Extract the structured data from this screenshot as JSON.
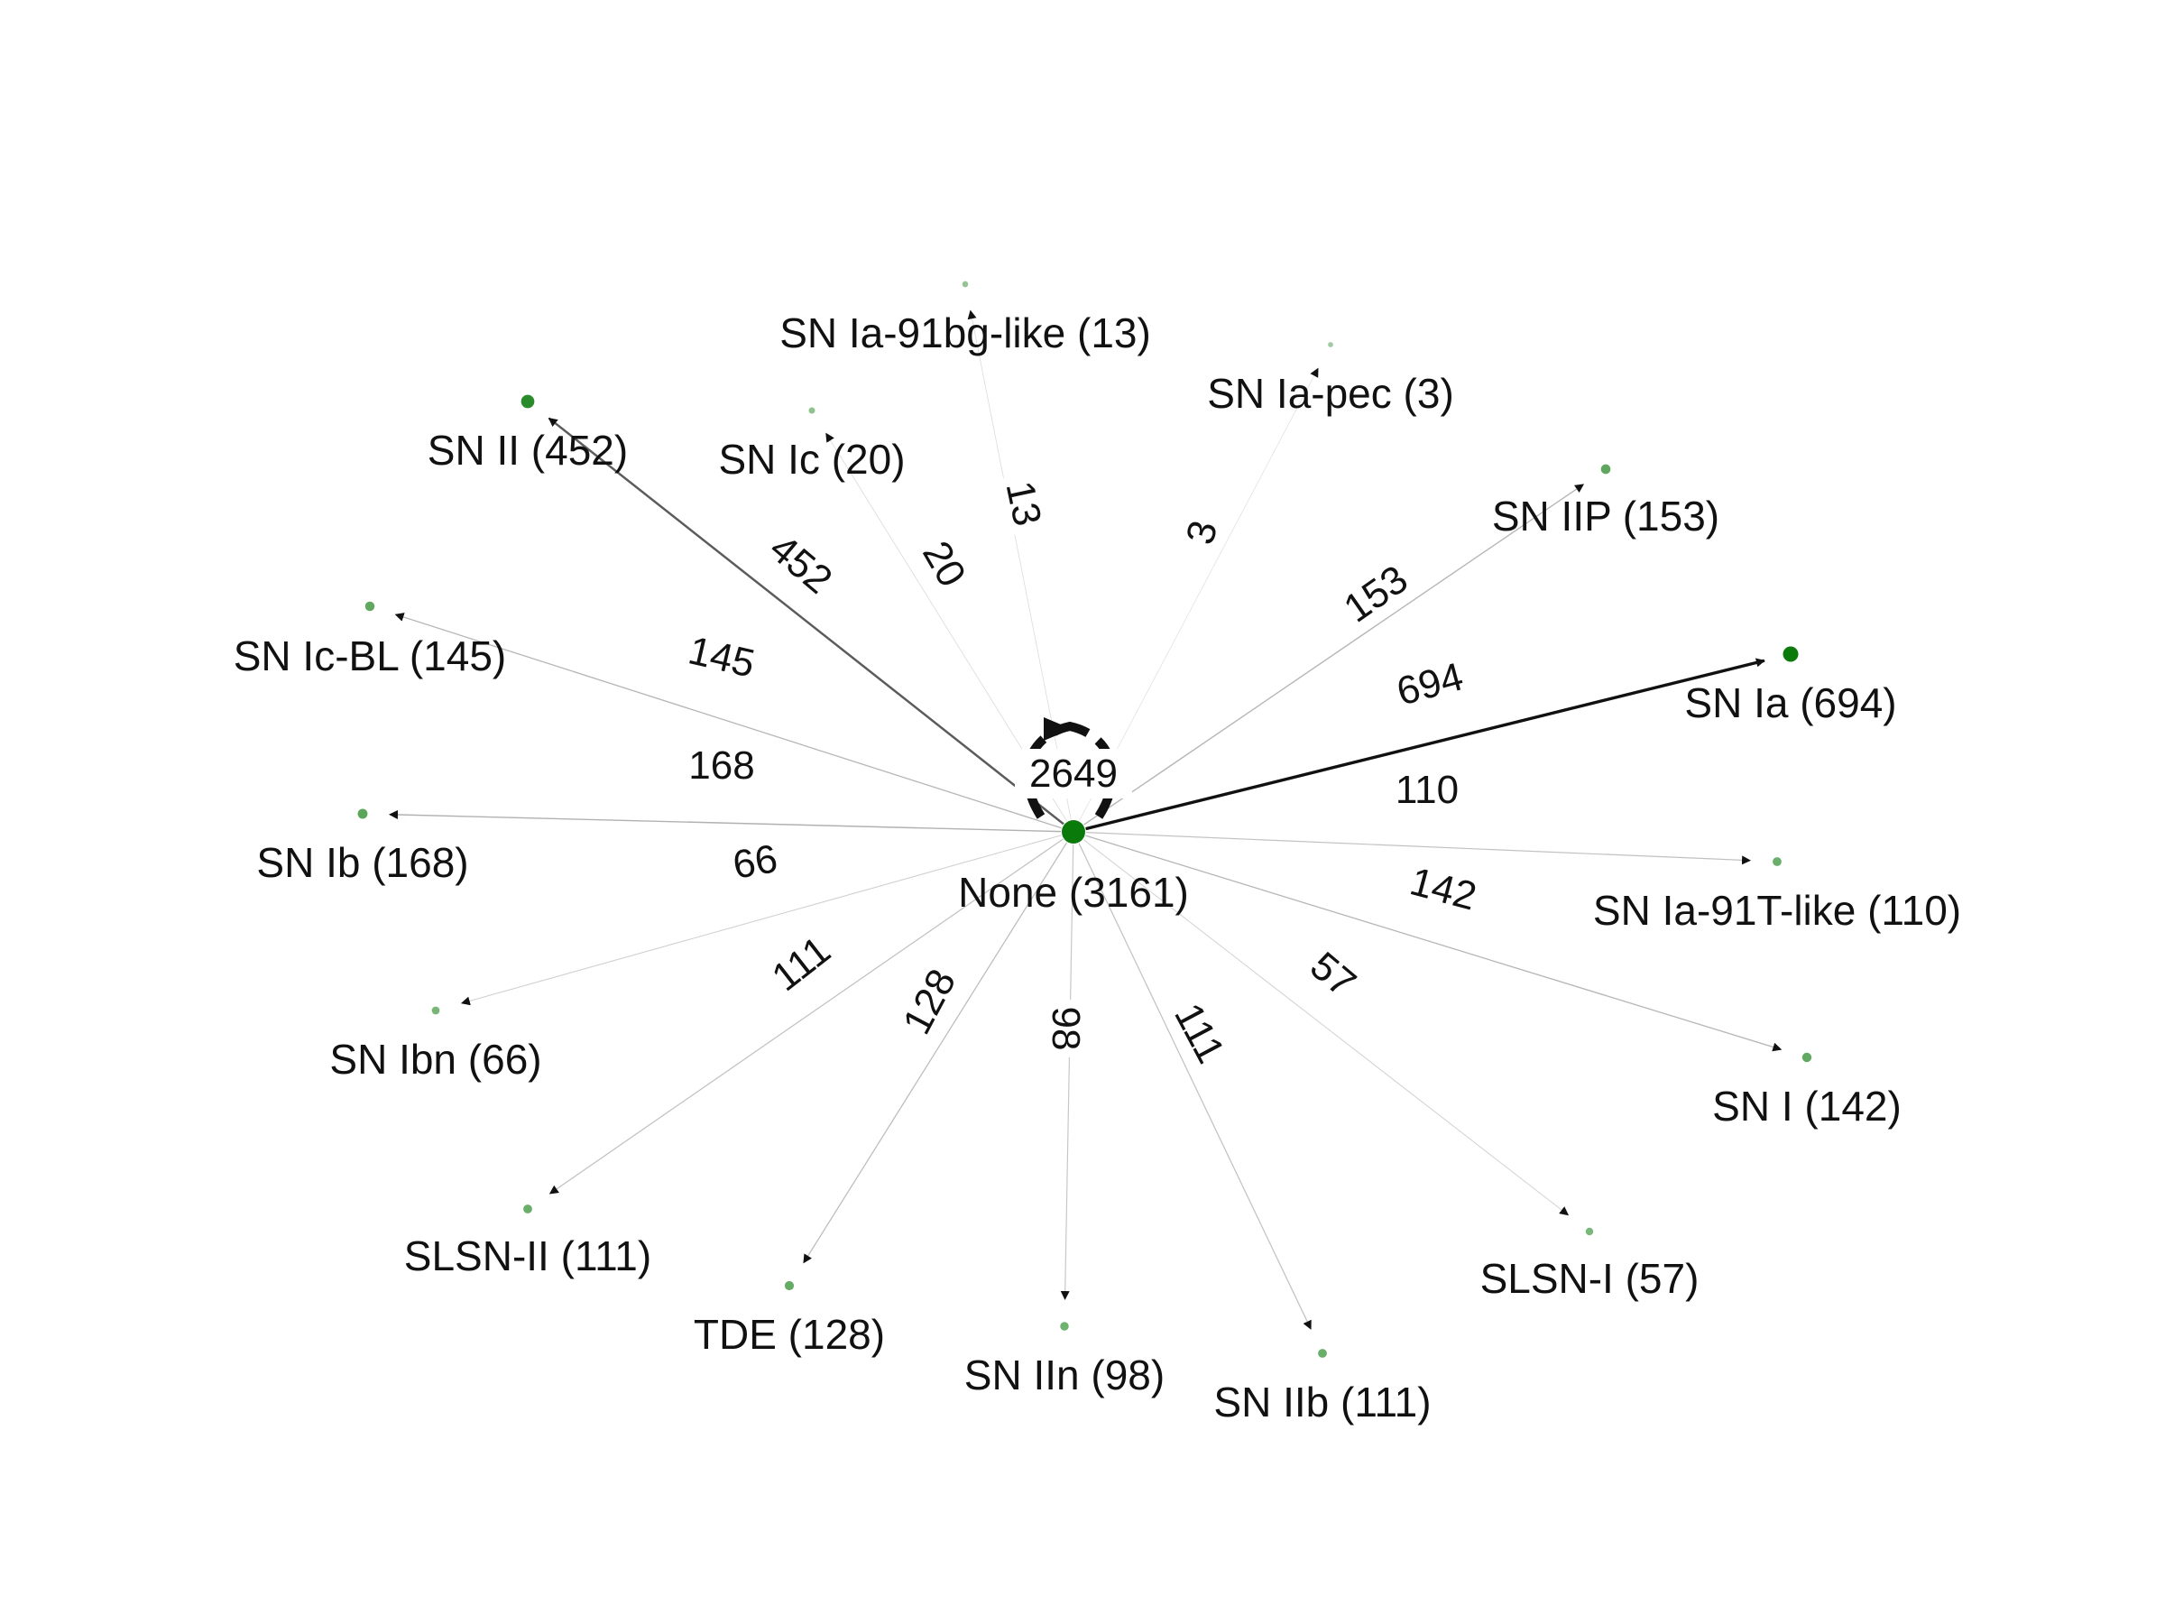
{
  "graph": {
    "center": {
      "label": "None (3161)",
      "self_loop_count": "2649"
    },
    "node_color": "#0a7a0a",
    "edge_color": "#111111",
    "targets": [
      {
        "label": "SN II (452)",
        "count": "452"
      },
      {
        "label": "SN Ic (20)",
        "count": "20"
      },
      {
        "label": "SN Ia-91bg-like (13)",
        "count": "13"
      },
      {
        "label": "SN Ia-pec (3)",
        "count": "3"
      },
      {
        "label": "SN IIP (153)",
        "count": "153"
      },
      {
        "label": "SN Ia (694)",
        "count": "694"
      },
      {
        "label": "SN Ia-91T-like (110)",
        "count": "110"
      },
      {
        "label": "SN I (142)",
        "count": "142"
      },
      {
        "label": "SLSN-I (57)",
        "count": "57"
      },
      {
        "label": "SN IIb (111)",
        "count": "111"
      },
      {
        "label": "SN IIn (98)",
        "count": "98"
      },
      {
        "label": "TDE (128)",
        "count": "128"
      },
      {
        "label": "SLSN-II (111)",
        "count": "111"
      },
      {
        "label": "SN Ibn (66)",
        "count": "66"
      },
      {
        "label": "SN Ib (168)",
        "count": "168"
      },
      {
        "label": "SN Ic-BL (145)",
        "count": "145"
      }
    ]
  }
}
